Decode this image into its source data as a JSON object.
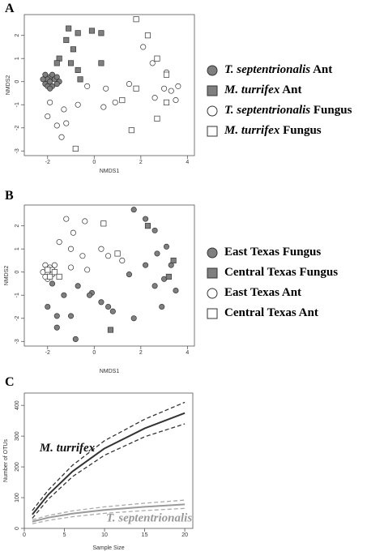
{
  "panels": {
    "a": "A",
    "b": "B",
    "c": "C"
  },
  "legend_a": [
    {
      "italic": "T. septentrionalis",
      "rest": " Ant",
      "marker": "circle",
      "fill": "#7f7f7f"
    },
    {
      "italic": "M. turrifex",
      "rest": " Ant",
      "marker": "square",
      "fill": "#7f7f7f"
    },
    {
      "italic": "T. septentrionalis",
      "rest": " Fungus",
      "marker": "circle",
      "fill": "#ffffff"
    },
    {
      "italic": "M. turrifex",
      "rest": " Fungus",
      "marker": "square",
      "fill": "#ffffff"
    }
  ],
  "legend_b": [
    {
      "italic": "",
      "rest": "East Texas Fungus",
      "marker": "circle",
      "fill": "#7f7f7f"
    },
    {
      "italic": "",
      "rest": "Central Texas Fungus",
      "marker": "square",
      "fill": "#7f7f7f"
    },
    {
      "italic": "",
      "rest": "East Texas Ant",
      "marker": "circle",
      "fill": "#ffffff"
    },
    {
      "italic": "",
      "rest": "Central Texas Ant",
      "marker": "square",
      "fill": "#ffffff"
    }
  ],
  "chart_data": [
    {
      "type": "scatter",
      "xlabel": "NMDS1",
      "ylabel": "NMDS2",
      "xlim": [
        -3,
        4.3
      ],
      "ylim": [
        -3.2,
        2.9
      ],
      "xticks": [
        -2,
        0,
        2,
        4
      ],
      "yticks": [
        -3,
        -2,
        -1,
        0,
        1,
        2
      ],
      "series": [
        {
          "name": "T. septentrionalis Ant",
          "marker": "circle",
          "fill": "#7f7f7f",
          "points": [
            [
              -2.1,
              0.3
            ],
            [
              -1.9,
              0.2
            ],
            [
              -1.8,
              0.3
            ],
            [
              -2.0,
              0.1
            ],
            [
              -2.1,
              -0.1
            ],
            [
              -1.9,
              0.0
            ],
            [
              -1.8,
              -0.2
            ],
            [
              -2.0,
              -0.2
            ],
            [
              -1.7,
              0.1
            ],
            [
              -1.6,
              0.2
            ],
            [
              -1.5,
              0.0
            ],
            [
              -1.6,
              -0.1
            ],
            [
              -2.2,
              0.1
            ],
            [
              -1.9,
              -0.3
            ]
          ]
        },
        {
          "name": "M. turrifex Ant",
          "marker": "square",
          "fill": "#7f7f7f",
          "points": [
            [
              -1.1,
              2.3
            ],
            [
              -0.1,
              2.2
            ],
            [
              0.3,
              2.1
            ],
            [
              -0.7,
              2.1
            ],
            [
              -1.2,
              1.8
            ],
            [
              -0.9,
              1.4
            ],
            [
              -1.5,
              1.0
            ],
            [
              -1.0,
              0.8
            ],
            [
              0.3,
              0.8
            ],
            [
              -0.7,
              0.5
            ],
            [
              -0.6,
              0.1
            ],
            [
              -1.6,
              0.8
            ]
          ]
        },
        {
          "name": "T. septentrionalis Fungus",
          "marker": "circle",
          "fill": "#ffffff",
          "points": [
            [
              2.1,
              1.5
            ],
            [
              2.5,
              0.8
            ],
            [
              3.1,
              0.4
            ],
            [
              3.6,
              -0.2
            ],
            [
              3.3,
              -0.4
            ],
            [
              3.0,
              -0.3
            ],
            [
              3.5,
              -0.8
            ],
            [
              2.6,
              -0.7
            ],
            [
              1.5,
              -0.1
            ],
            [
              0.9,
              -0.9
            ],
            [
              0.4,
              -1.1
            ],
            [
              0.5,
              -0.3
            ],
            [
              -0.3,
              -0.2
            ],
            [
              -0.7,
              -1.0
            ],
            [
              -1.3,
              -1.2
            ],
            [
              -1.9,
              -0.9
            ],
            [
              -1.6,
              -1.9
            ],
            [
              -2.0,
              -1.5
            ],
            [
              -1.2,
              -1.8
            ],
            [
              -1.4,
              -2.4
            ]
          ]
        },
        {
          "name": "M. turrifex Fungus",
          "marker": "square",
          "fill": "#ffffff",
          "points": [
            [
              1.8,
              2.7
            ],
            [
              2.3,
              2.0
            ],
            [
              2.7,
              1.0
            ],
            [
              3.1,
              0.3
            ],
            [
              3.1,
              -0.9
            ],
            [
              2.7,
              -1.6
            ],
            [
              1.6,
              -2.1
            ],
            [
              1.2,
              -0.8
            ],
            [
              1.8,
              -0.3
            ],
            [
              -0.8,
              -2.9
            ]
          ]
        }
      ]
    },
    {
      "type": "scatter",
      "xlabel": "NMDS1",
      "ylabel": "NMDS2",
      "xlim": [
        -3,
        4.3
      ],
      "ylim": [
        -3.2,
        2.9
      ],
      "xticks": [
        -2,
        0,
        2,
        4
      ],
      "yticks": [
        -3,
        -2,
        -1,
        0,
        1,
        2
      ],
      "series": [
        {
          "name": "East Texas Fungus",
          "marker": "circle",
          "fill": "#7f7f7f",
          "points": [
            [
              1.7,
              2.7
            ],
            [
              2.2,
              2.3
            ],
            [
              2.6,
              1.8
            ],
            [
              3.1,
              1.1
            ],
            [
              2.7,
              0.8
            ],
            [
              3.3,
              0.3
            ],
            [
              2.2,
              0.3
            ],
            [
              3.0,
              -0.3
            ],
            [
              3.5,
              -0.8
            ],
            [
              2.6,
              -0.6
            ],
            [
              1.5,
              -0.1
            ],
            [
              2.9,
              -1.5
            ],
            [
              1.7,
              -2.0
            ],
            [
              0.6,
              -1.5
            ],
            [
              -0.1,
              -0.9
            ],
            [
              -0.2,
              -1.0
            ],
            [
              0.3,
              -1.3
            ],
            [
              -0.7,
              -0.6
            ],
            [
              -1.3,
              -1.0
            ],
            [
              -1.6,
              -1.9
            ],
            [
              -2.0,
              -1.5
            ],
            [
              -1.0,
              -1.9
            ],
            [
              -1.6,
              -2.4
            ],
            [
              -0.8,
              -2.9
            ],
            [
              -1.8,
              -0.5
            ],
            [
              0.8,
              -1.7
            ]
          ]
        },
        {
          "name": "Central Texas Fungus",
          "marker": "square",
          "fill": "#7f7f7f",
          "points": [
            [
              2.3,
              2.0
            ],
            [
              3.4,
              0.5
            ],
            [
              3.2,
              -0.2
            ],
            [
              0.7,
              -2.5
            ]
          ]
        },
        {
          "name": "East Texas Ant",
          "marker": "circle",
          "fill": "#ffffff",
          "points": [
            [
              -1.2,
              2.3
            ],
            [
              -0.4,
              2.2
            ],
            [
              -0.9,
              1.7
            ],
            [
              -1.5,
              1.3
            ],
            [
              -1.0,
              1.0
            ],
            [
              -0.5,
              0.7
            ],
            [
              0.3,
              1.0
            ],
            [
              0.6,
              0.7
            ],
            [
              1.2,
              0.5
            ],
            [
              -0.3,
              0.1
            ],
            [
              -1.0,
              0.2
            ],
            [
              -2.1,
              0.3
            ],
            [
              -1.9,
              0.2
            ],
            [
              -2.2,
              0.0
            ],
            [
              -1.8,
              -0.1
            ],
            [
              -2.0,
              -0.3
            ],
            [
              -1.8,
              0.1
            ],
            [
              -2.1,
              -0.2
            ],
            [
              -1.7,
              0.3
            ]
          ]
        },
        {
          "name": "Central Texas Ant",
          "marker": "square",
          "fill": "#ffffff",
          "points": [
            [
              0.4,
              2.1
            ],
            [
              1.0,
              0.8
            ],
            [
              -2.0,
              0.1
            ],
            [
              -1.9,
              -0.2
            ],
            [
              -1.7,
              0.0
            ],
            [
              -1.5,
              -0.2
            ]
          ]
        }
      ]
    },
    {
      "type": "line",
      "xlabel": "Sample  Size",
      "ylabel": "Number of OTUs",
      "xlim": [
        0,
        21
      ],
      "ylim": [
        0,
        440
      ],
      "xticks": [
        0,
        5,
        10,
        15,
        20
      ],
      "yticks": [
        0,
        100,
        200,
        300,
        400
      ],
      "annotations": [
        {
          "text": "M. turrifex",
          "x": 1.9,
          "y": 250
        },
        {
          "text": "T. septentrionalis",
          "x": 10.2,
          "y": 22
        }
      ],
      "series": [
        {
          "name": "M. turrifex",
          "color": "#333333",
          "style": "solid",
          "width": 2,
          "x": [
            1,
            3,
            6,
            10,
            15,
            20
          ],
          "y": [
            45,
            110,
            185,
            260,
            325,
            375
          ]
        },
        {
          "name": "M. turrifex upper",
          "color": "#333333",
          "style": "dashed",
          "width": 1.3,
          "x": [
            1,
            3,
            6,
            10,
            15,
            20
          ],
          "y": [
            58,
            125,
            205,
            285,
            355,
            410
          ]
        },
        {
          "name": "M. turrifex lower",
          "color": "#333333",
          "style": "dashed",
          "width": 1.3,
          "x": [
            1,
            3,
            6,
            10,
            15,
            20
          ],
          "y": [
            33,
            95,
            168,
            238,
            298,
            340
          ]
        },
        {
          "name": "T. septentrionalis",
          "color": "#9a9a9a",
          "style": "solid",
          "width": 2,
          "x": [
            1,
            3,
            6,
            10,
            15,
            20
          ],
          "y": [
            22,
            35,
            48,
            60,
            70,
            78
          ]
        },
        {
          "name": "T. septentrionalis upper",
          "color": "#aaaaaa",
          "style": "dashed",
          "width": 1.3,
          "x": [
            1,
            3,
            6,
            10,
            15,
            20
          ],
          "y": [
            28,
            42,
            57,
            70,
            82,
            92
          ]
        },
        {
          "name": "T. septentrionalis lower",
          "color": "#aaaaaa",
          "style": "dashed",
          "width": 1.3,
          "x": [
            1,
            3,
            6,
            10,
            15,
            20
          ],
          "y": [
            15,
            26,
            38,
            49,
            58,
            65
          ]
        }
      ]
    }
  ]
}
